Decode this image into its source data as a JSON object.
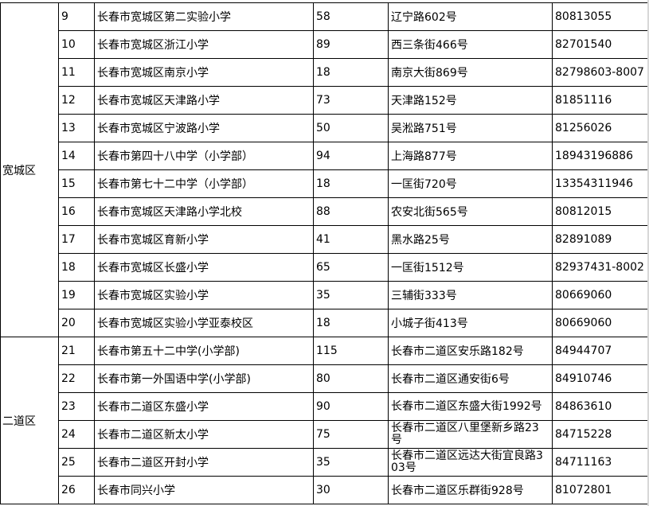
{
  "districts": [
    {
      "name": "宽城区",
      "rows": [
        {
          "no": "9",
          "school": "长春市宽城区第二实验小学",
          "count": "58",
          "address": "辽宁路602号",
          "phone": "80813055"
        },
        {
          "no": "10",
          "school": "长春市宽城区浙江小学",
          "count": "89",
          "address": "西三条街466号",
          "phone": "82701540"
        },
        {
          "no": "11",
          "school": "长春市宽城区南京小学",
          "count": "18",
          "address": "南京大街869号",
          "phone": "82798603-8007"
        },
        {
          "no": "12",
          "school": "长春市宽城区天津路小学",
          "count": "73",
          "address": "天津路152号",
          "phone": "81851116"
        },
        {
          "no": "13",
          "school": "长春市宽城区宁波路小学",
          "count": "50",
          "address": "吴淞路751号",
          "phone": "81256026"
        },
        {
          "no": "14",
          "school": "长春市第四十八中学（小学部）",
          "count": "94",
          "address": "上海路877号",
          "phone": "18943196886"
        },
        {
          "no": "15",
          "school": "长春市第七十二中学（小学部）",
          "count": "18",
          "address": "一匡街720号",
          "phone": "13354311946"
        },
        {
          "no": "16",
          "school": "长春市宽城区天津路小学北校",
          "count": "88",
          "address": "农安北街565号",
          "phone": "80812015"
        },
        {
          "no": "17",
          "school": "长春市宽城区育新小学",
          "count": "41",
          "address": "黑水路25号",
          "phone": "82891089"
        },
        {
          "no": "18",
          "school": "长春市宽城区长盛小学",
          "count": "65",
          "address": "一匡街1512号",
          "phone": "82937431-8002"
        },
        {
          "no": "19",
          "school": "长春市宽城区实验小学",
          "count": "35",
          "address": "三辅街333号",
          "phone": "80669060"
        },
        {
          "no": "20",
          "school": "长春市宽城区实验小学亚泰校区",
          "count": "18",
          "address": "小城子街413号",
          "phone": "80669060"
        }
      ]
    },
    {
      "name": "二道区",
      "rows": [
        {
          "no": "21",
          "school": "长春市第五十二中学(小学部)",
          "count": "115",
          "address": "长春市二道区安乐路182号",
          "phone": "84944707"
        },
        {
          "no": "22",
          "school": "长春市第一外国语中学(小学部)",
          "count": "80",
          "address": "长春市二道区通安街6号",
          "phone": "84910746"
        },
        {
          "no": "23",
          "school": "长春市二道区东盛小学",
          "count": "90",
          "address": "长春市二道区东盛大街1992号",
          "phone": "84863610"
        },
        {
          "no": "24",
          "school": "长春市二道区新太小学",
          "count": "75",
          "address": "长春市二道区八里堡新乡路23号",
          "phone": "84715228"
        },
        {
          "no": "25",
          "school": "长春市二道区开封小学",
          "count": "35",
          "address": "长春市二道区远达大街宜良路303号",
          "phone": "84711163"
        },
        {
          "no": "26",
          "school": "长春市同兴小学",
          "count": "30",
          "address": "长春市二道区乐群街928号",
          "phone": "81072801"
        }
      ]
    }
  ]
}
